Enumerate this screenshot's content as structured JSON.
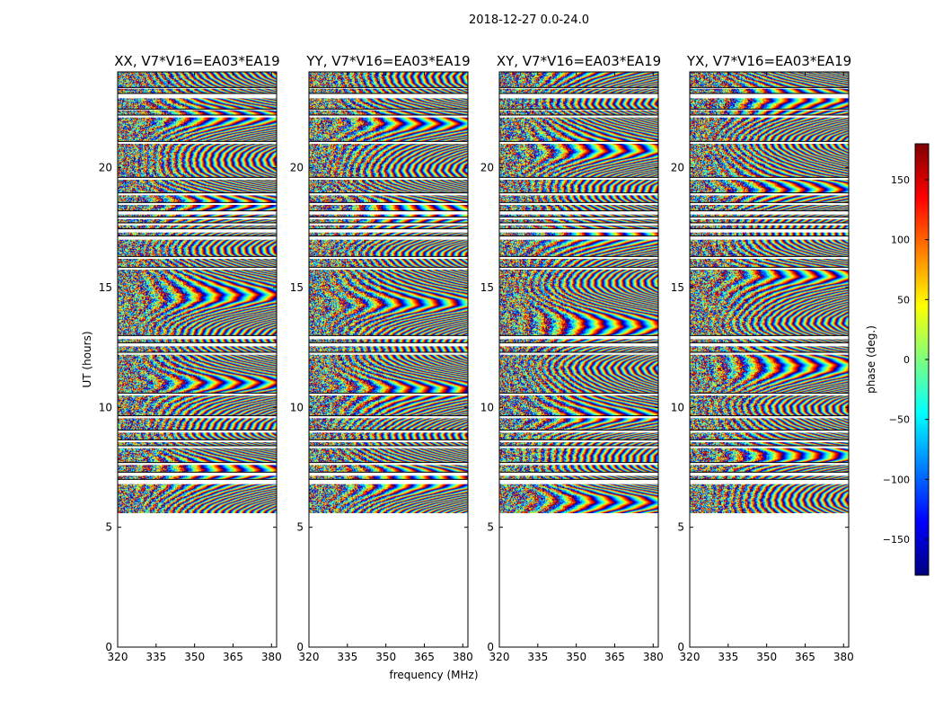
{
  "figure": {
    "suptitle": "2018-12-27 0.0-24.0"
  },
  "chart_data": [
    {
      "type": "heatmap",
      "title": "XX, V7*V16=EA03*EA19",
      "xlabel": "",
      "ylabel": "UT (hours)",
      "xlim": [
        320,
        382
      ],
      "ylim": [
        0,
        24
      ],
      "x_ticks": [
        320,
        335,
        350,
        365,
        380
      ],
      "y_ticks": [
        0,
        5,
        10,
        15,
        20
      ],
      "data_start_ut": 5.6,
      "texture_seed": 11
    },
    {
      "type": "heatmap",
      "title": "YY, V7*V16=EA03*EA19",
      "xlabel": "frequency (MHz)",
      "ylabel": "",
      "xlim": [
        320,
        382
      ],
      "ylim": [
        0,
        24
      ],
      "x_ticks": [
        320,
        335,
        350,
        365,
        380
      ],
      "y_ticks": [
        0,
        5,
        10,
        15,
        20
      ],
      "data_start_ut": 5.6,
      "texture_seed": 23
    },
    {
      "type": "heatmap",
      "title": "XY, V7*V16=EA03*EA19",
      "xlabel": "",
      "ylabel": "",
      "xlim": [
        320,
        382
      ],
      "ylim": [
        0,
        24
      ],
      "x_ticks": [
        320,
        335,
        350,
        365,
        380
      ],
      "y_ticks": [
        0,
        5,
        10,
        15,
        20
      ],
      "data_start_ut": 5.6,
      "texture_seed": 37
    },
    {
      "type": "heatmap",
      "title": "YX, V7*V16=EA03*EA19",
      "xlabel": "",
      "ylabel": "",
      "xlim": [
        320,
        382
      ],
      "ylim": [
        0,
        24
      ],
      "x_ticks": [
        320,
        335,
        350,
        365,
        380
      ],
      "y_ticks": [
        0,
        5,
        10,
        15,
        20
      ],
      "data_start_ut": 5.6,
      "texture_seed": 53
    }
  ],
  "colorbar": {
    "label": "phase (deg.)",
    "range": [
      -180,
      180
    ],
    "ticks": [
      150,
      100,
      50,
      0,
      -50,
      -100,
      -150
    ],
    "colormap": "jet",
    "colors": [
      "#00007f",
      "#0000ff",
      "#007fff",
      "#00ffff",
      "#7fff7f",
      "#ffff00",
      "#ff7f00",
      "#ff0000",
      "#7f0000"
    ]
  },
  "flagged_ut_bands": [
    [
      6.8,
      7.0
    ],
    [
      7.15,
      7.3
    ],
    [
      7.6,
      7.7
    ],
    [
      8.3,
      8.4
    ],
    [
      8.55,
      8.65
    ],
    [
      8.95,
      9.05
    ],
    [
      9.55,
      9.65
    ],
    [
      10.5,
      10.6
    ],
    [
      12.2,
      12.3
    ],
    [
      12.55,
      12.7
    ],
    [
      12.85,
      13.0
    ],
    [
      15.75,
      15.85
    ],
    [
      16.2,
      16.3
    ],
    [
      17.0,
      17.15
    ],
    [
      17.3,
      17.45
    ],
    [
      17.6,
      17.7
    ],
    [
      17.85,
      17.95
    ],
    [
      18.05,
      18.2
    ],
    [
      18.45,
      18.55
    ],
    [
      18.85,
      18.95
    ],
    [
      19.5,
      19.6
    ],
    [
      21.0,
      21.1
    ],
    [
      22.1,
      22.2
    ],
    [
      22.4,
      22.45
    ],
    [
      22.9,
      23.1
    ],
    [
      23.3,
      23.35
    ]
  ]
}
